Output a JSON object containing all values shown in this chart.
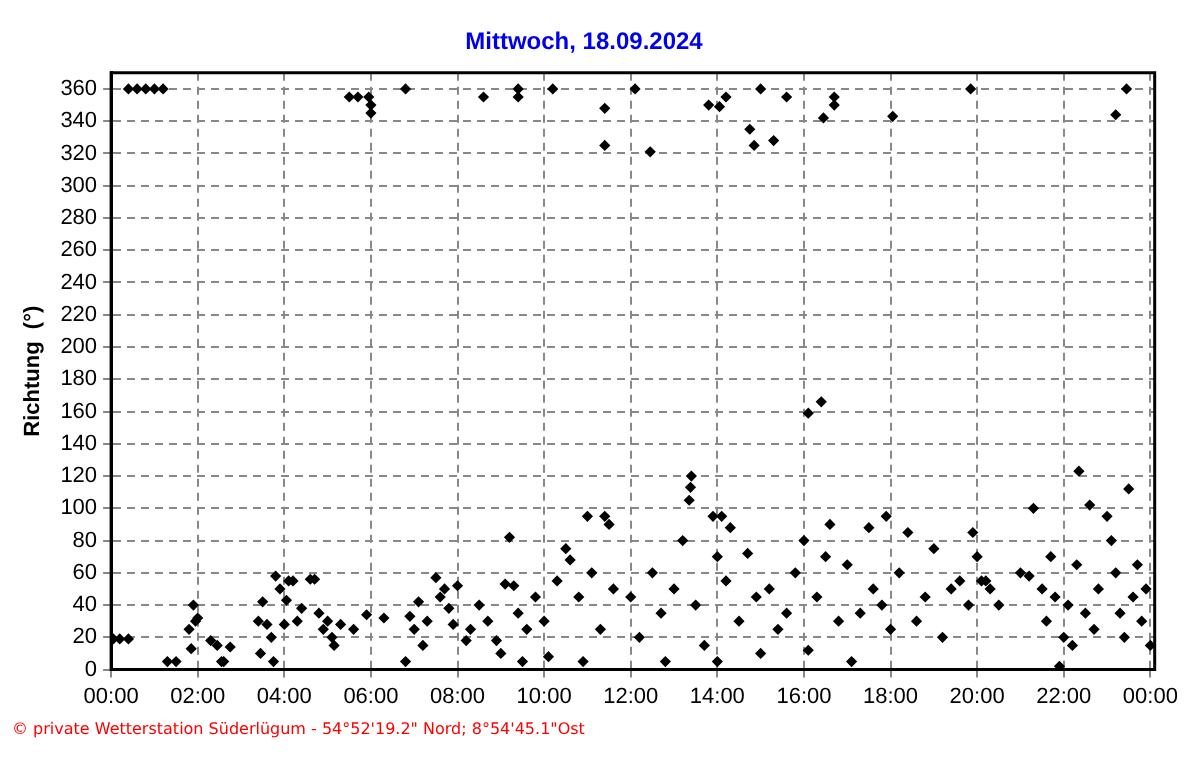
{
  "chart_data": {
    "type": "scatter",
    "title": "Mittwoch, 18.09.2024",
    "ylabel": "Richtung  (°)",
    "color": "#000000",
    "marker": "diamond",
    "grid": true,
    "xlim": [
      0,
      24.1
    ],
    "ylim": [
      0,
      370
    ],
    "xticks": [
      {
        "value": 0,
        "label": "00:00"
      },
      {
        "value": 2,
        "label": "02:00"
      },
      {
        "value": 4,
        "label": "04:00"
      },
      {
        "value": 6,
        "label": "06:00"
      },
      {
        "value": 8,
        "label": "08:00"
      },
      {
        "value": 10,
        "label": "10:00"
      },
      {
        "value": 12,
        "label": "12:00"
      },
      {
        "value": 14,
        "label": "14:00"
      },
      {
        "value": 16,
        "label": "16:00"
      },
      {
        "value": 18,
        "label": "18:00"
      },
      {
        "value": 20,
        "label": "20:00"
      },
      {
        "value": 22,
        "label": "22:00"
      },
      {
        "value": 24,
        "label": "00:00"
      }
    ],
    "yticks": [
      0,
      20,
      40,
      60,
      80,
      100,
      120,
      140,
      160,
      180,
      200,
      220,
      240,
      260,
      280,
      300,
      320,
      340,
      360
    ],
    "annotations": [
      "© private Wetterstation Süderlügum  -  54°52'19.2\" Nord; 8°54'45.1\"Ost"
    ],
    "x": [
      0.4,
      0.6,
      0.8,
      1.0,
      1.2,
      5.5,
      5.7,
      5.95,
      6.0,
      6.0,
      6.8,
      8.6,
      9.4,
      9.4,
      10.2,
      11.4,
      11.4,
      12.1,
      12.45,
      13.8,
      14.05,
      14.2,
      14.75,
      14.85,
      15.0,
      15.3,
      15.6,
      16.45,
      16.7,
      16.7,
      18.05,
      19.85,
      23.2,
      23.45,
      16.1,
      16.4,
      0.05,
      0.2,
      0.4,
      1.3,
      1.5,
      1.8,
      1.9,
      1.95,
      2.0,
      1.85,
      2.3,
      2.45,
      2.55,
      2.6,
      2.75,
      3.4,
      3.5,
      3.45,
      3.6,
      3.7,
      3.75,
      3.8,
      3.9,
      4.0,
      4.1,
      4.05,
      4.2,
      4.3,
      4.4,
      4.6,
      4.7,
      4.8,
      4.9,
      5.0,
      5.1,
      5.15,
      5.3,
      5.6,
      5.9,
      6.3,
      6.8,
      6.9,
      7.0,
      7.1,
      7.2,
      7.3,
      7.5,
      7.6,
      7.7,
      7.8,
      7.9,
      8.0,
      8.2,
      8.3,
      8.5,
      8.7,
      8.9,
      9.0,
      9.2,
      9.1,
      9.3,
      9.4,
      9.5,
      9.6,
      9.8,
      10.0,
      10.1,
      10.3,
      10.5,
      10.6,
      10.8,
      10.9,
      11.0,
      11.1,
      11.3,
      11.4,
      11.5,
      11.6,
      12.0,
      12.2,
      12.5,
      12.7,
      12.8,
      13.0,
      13.2,
      13.35,
      13.4,
      13.38,
      13.5,
      13.7,
      13.9,
      14.0,
      14.0,
      14.1,
      14.2,
      14.3,
      14.5,
      14.7,
      14.9,
      15.0,
      15.2,
      15.4,
      15.6,
      15.8,
      16.0,
      16.1,
      16.3,
      16.5,
      16.6,
      16.8,
      17.0,
      17.1,
      17.3,
      17.5,
      17.6,
      17.8,
      17.9,
      18.0,
      18.2,
      18.4,
      18.6,
      18.8,
      19.0,
      19.2,
      19.4,
      19.6,
      19.8,
      19.9,
      20.0,
      20.1,
      20.2,
      20.3,
      20.5,
      21.0,
      21.2,
      21.3,
      21.5,
      21.6,
      21.7,
      21.8,
      21.9,
      22.0,
      22.1,
      22.2,
      22.3,
      22.35,
      22.5,
      22.6,
      22.7,
      22.8,
      23.0,
      23.1,
      23.2,
      23.3,
      23.4,
      23.5,
      23.6,
      23.7,
      23.8,
      23.9,
      24.0
    ],
    "values": [
      360,
      360,
      360,
      360,
      360,
      355,
      355,
      355,
      350,
      345,
      360,
      355,
      360,
      355,
      360,
      348,
      325,
      360,
      321,
      350,
      349,
      355,
      335,
      325,
      360,
      328,
      355,
      342,
      355,
      350,
      343,
      360,
      344,
      360,
      159,
      166,
      19,
      19,
      19,
      5,
      5,
      25,
      40,
      30,
      32,
      13,
      18,
      15,
      5,
      5,
      14,
      30,
      42,
      10,
      28,
      20,
      5,
      58,
      50,
      28,
      55,
      43,
      55,
      30,
      38,
      56,
      56,
      35,
      25,
      30,
      20,
      15,
      28,
      25,
      34,
      32,
      5,
      33,
      25,
      42,
      15,
      30,
      57,
      45,
      50,
      38,
      28,
      52,
      18,
      25,
      40,
      30,
      18,
      10,
      82,
      53,
      52,
      35,
      5,
      25,
      45,
      30,
      8,
      55,
      75,
      68,
      45,
      5,
      95,
      60,
      25,
      95,
      90,
      50,
      45,
      20,
      60,
      35,
      5,
      50,
      80,
      105,
      120,
      113,
      40,
      15,
      95,
      70,
      5,
      95,
      55,
      88,
      30,
      72,
      45,
      10,
      50,
      25,
      35,
      60,
      80,
      12,
      45,
      70,
      90,
      30,
      65,
      5,
      35,
      88,
      50,
      40,
      95,
      25,
      60,
      85,
      30,
      45,
      75,
      20,
      50,
      55,
      40,
      85,
      70,
      55,
      55,
      50,
      40,
      60,
      58,
      100,
      50,
      30,
      70,
      45,
      2,
      20,
      40,
      15,
      65,
      123,
      35,
      102,
      25,
      50,
      95,
      80,
      60,
      35,
      20,
      112,
      45,
      65,
      30,
      50,
      15
    ]
  }
}
